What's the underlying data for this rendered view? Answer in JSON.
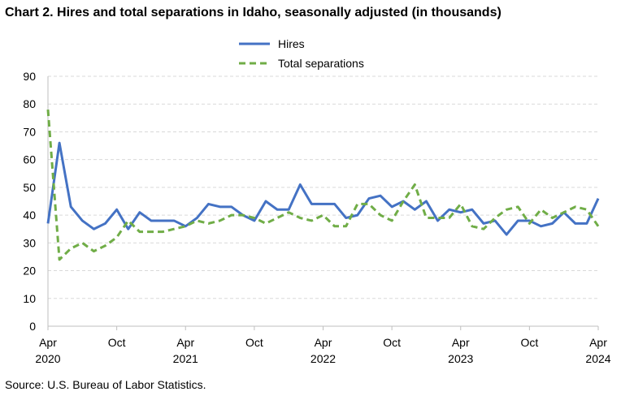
{
  "title": "Chart 2. Hires and total separations in Idaho, seasonally adjusted (in thousands)",
  "source": "Source: U.S. Bureau of Labor Statistics.",
  "chart_data": {
    "type": "line",
    "title": "Chart 2. Hires and total separations in Idaho, seasonally adjusted (in thousands)",
    "xlabel": "",
    "ylabel": "",
    "ylim": [
      0,
      90
    ],
    "yticks": [
      0,
      10,
      20,
      30,
      40,
      50,
      60,
      70,
      80,
      90
    ],
    "grid": true,
    "legend_position": "top-center",
    "x_tick_labels": [
      {
        "index": 0,
        "month": "Apr",
        "year": "2020"
      },
      {
        "index": 6,
        "month": "Oct",
        "year": ""
      },
      {
        "index": 12,
        "month": "Apr",
        "year": "2021"
      },
      {
        "index": 18,
        "month": "Oct",
        "year": ""
      },
      {
        "index": 24,
        "month": "Apr",
        "year": "2022"
      },
      {
        "index": 30,
        "month": "Oct",
        "year": ""
      },
      {
        "index": 36,
        "month": "Apr",
        "year": "2023"
      },
      {
        "index": 42,
        "month": "Oct",
        "year": ""
      },
      {
        "index": 48,
        "month": "Apr",
        "year": "2024"
      }
    ],
    "x": [
      "Apr 2020",
      "May 2020",
      "Jun 2020",
      "Jul 2020",
      "Aug 2020",
      "Sep 2020",
      "Oct 2020",
      "Nov 2020",
      "Dec 2020",
      "Jan 2021",
      "Feb 2021",
      "Mar 2021",
      "Apr 2021",
      "May 2021",
      "Jun 2021",
      "Jul 2021",
      "Aug 2021",
      "Sep 2021",
      "Oct 2021",
      "Nov 2021",
      "Dec 2021",
      "Jan 2022",
      "Feb 2022",
      "Mar 2022",
      "Apr 2022",
      "May 2022",
      "Jun 2022",
      "Jul 2022",
      "Aug 2022",
      "Sep 2022",
      "Oct 2022",
      "Nov 2022",
      "Dec 2022",
      "Jan 2023",
      "Feb 2023",
      "Mar 2023",
      "Apr 2023",
      "May 2023",
      "Jun 2023",
      "Jul 2023",
      "Aug 2023",
      "Sep 2023",
      "Oct 2023",
      "Nov 2023",
      "Dec 2023",
      "Jan 2024",
      "Feb 2024",
      "Mar 2024",
      "Apr 2024"
    ],
    "series": [
      {
        "name": "Hires",
        "color": "#4472C4",
        "style": "solid",
        "values": [
          37,
          66,
          43,
          38,
          35,
          37,
          42,
          35,
          41,
          38,
          38,
          38,
          36,
          39,
          44,
          43,
          43,
          40,
          38,
          45,
          42,
          42,
          51,
          44,
          44,
          44,
          39,
          40,
          46,
          47,
          43,
          45,
          42,
          45,
          38,
          42,
          41,
          42,
          37,
          38,
          33,
          38,
          38,
          36,
          37,
          41,
          37,
          37,
          46
        ]
      },
      {
        "name": "Total separations",
        "color": "#70AD47",
        "style": "dashed",
        "values": [
          78,
          24,
          28,
          30,
          27,
          29,
          32,
          38,
          34,
          34,
          34,
          35,
          36,
          38,
          37,
          38,
          40,
          40,
          39,
          37,
          39,
          41,
          39,
          38,
          40,
          36,
          36,
          44,
          44,
          40,
          38,
          45,
          51,
          39,
          39,
          39,
          44,
          36,
          35,
          39,
          42,
          43,
          37,
          42,
          39,
          41,
          43,
          42,
          36
        ]
      }
    ]
  }
}
